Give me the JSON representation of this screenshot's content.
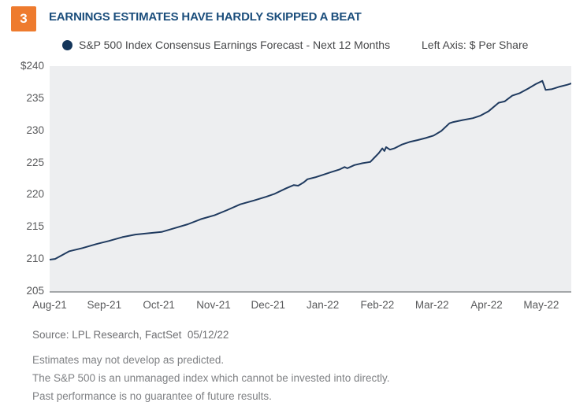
{
  "header": {
    "badge": "3",
    "title": "EARNINGS ESTIMATES HAVE HARDLY SKIPPED A BEAT"
  },
  "legend": {
    "series_label": "S&P 500 Index Consensus Earnings Forecast - Next 12 Months",
    "axis_note": "Left Axis: $ Per Share"
  },
  "chart_data": {
    "type": "line",
    "title": "EARNINGS ESTIMATES HAVE HARDLY SKIPPED A BEAT",
    "series_name": "S&P 500 Index Consensus Earnings Forecast - Next 12 Months",
    "ylabel": "$ Per Share",
    "ylim": [
      205,
      240
    ],
    "x_range_months": [
      0,
      9.55
    ],
    "grid": false,
    "legend_position": "top",
    "plot_bg": "#EDEEF0",
    "line_color": "#1F3A5F",
    "marker_color": "#14365B",
    "y_ticks": [
      240,
      235,
      230,
      225,
      220,
      215,
      210,
      205
    ],
    "y_tick_labels": [
      "$240",
      "235",
      "230",
      "225",
      "220",
      "215",
      "210",
      "205"
    ],
    "x_tick_labels": [
      "Aug-21",
      "Sep-21",
      "Oct-21",
      "Nov-21",
      "Dec-21",
      "Jan-22",
      "Feb-22",
      "Mar-22",
      "Apr-22",
      "May-22"
    ],
    "points": [
      [
        0.0,
        209.9
      ],
      [
        0.1,
        210.0
      ],
      [
        0.36,
        211.2
      ],
      [
        0.6,
        211.7
      ],
      [
        0.85,
        212.3
      ],
      [
        1.08,
        212.8
      ],
      [
        1.33,
        213.4
      ],
      [
        1.57,
        213.8
      ],
      [
        1.8,
        214.0
      ],
      [
        2.05,
        214.2
      ],
      [
        2.29,
        214.8
      ],
      [
        2.53,
        215.4
      ],
      [
        2.77,
        216.2
      ],
      [
        3.02,
        216.8
      ],
      [
        3.25,
        217.6
      ],
      [
        3.49,
        218.5
      ],
      [
        3.74,
        219.1
      ],
      [
        3.97,
        219.7
      ],
      [
        4.11,
        220.1
      ],
      [
        4.33,
        221.0
      ],
      [
        4.47,
        221.5
      ],
      [
        4.55,
        221.4
      ],
      [
        4.65,
        221.9
      ],
      [
        4.72,
        222.4
      ],
      [
        4.86,
        222.7
      ],
      [
        5.01,
        223.1
      ],
      [
        5.15,
        223.5
      ],
      [
        5.3,
        223.9
      ],
      [
        5.4,
        224.3
      ],
      [
        5.45,
        224.1
      ],
      [
        5.58,
        224.6
      ],
      [
        5.73,
        224.9
      ],
      [
        5.87,
        225.1
      ],
      [
        5.95,
        225.8
      ],
      [
        6.02,
        226.4
      ],
      [
        6.09,
        227.2
      ],
      [
        6.13,
        226.8
      ],
      [
        6.16,
        227.4
      ],
      [
        6.23,
        227.0
      ],
      [
        6.31,
        227.2
      ],
      [
        6.45,
        227.8
      ],
      [
        6.59,
        228.2
      ],
      [
        6.74,
        228.5
      ],
      [
        6.88,
        228.8
      ],
      [
        7.03,
        229.2
      ],
      [
        7.17,
        229.9
      ],
      [
        7.32,
        231.1
      ],
      [
        7.39,
        231.3
      ],
      [
        7.56,
        231.6
      ],
      [
        7.75,
        231.9
      ],
      [
        7.89,
        232.3
      ],
      [
        8.04,
        233.0
      ],
      [
        8.22,
        234.3
      ],
      [
        8.33,
        234.5
      ],
      [
        8.47,
        235.4
      ],
      [
        8.61,
        235.8
      ],
      [
        8.76,
        236.5
      ],
      [
        8.9,
        237.2
      ],
      [
        9.02,
        237.7
      ],
      [
        9.08,
        236.3
      ],
      [
        9.19,
        236.4
      ],
      [
        9.34,
        236.8
      ],
      [
        9.48,
        237.1
      ],
      [
        9.55,
        237.3
      ]
    ]
  },
  "footer": {
    "source": "Source: LPL Research, FactSet  05/12/22",
    "disclaimers": [
      "Estimates may not develop as predicted.",
      "The S&P 500 is an unmanaged index which cannot be invested into directly.",
      "Past performance is no guarantee of future results."
    ]
  },
  "colors": {
    "badge_orange": "#EE7B2E",
    "title_blue": "#1B4E7C",
    "line_navy": "#1F3A5F",
    "plot_background": "#EDEEF0",
    "axis_line_gray": "#A4A7A9",
    "tick_gray": "#58595B",
    "footer_gray": "#7F8184"
  }
}
